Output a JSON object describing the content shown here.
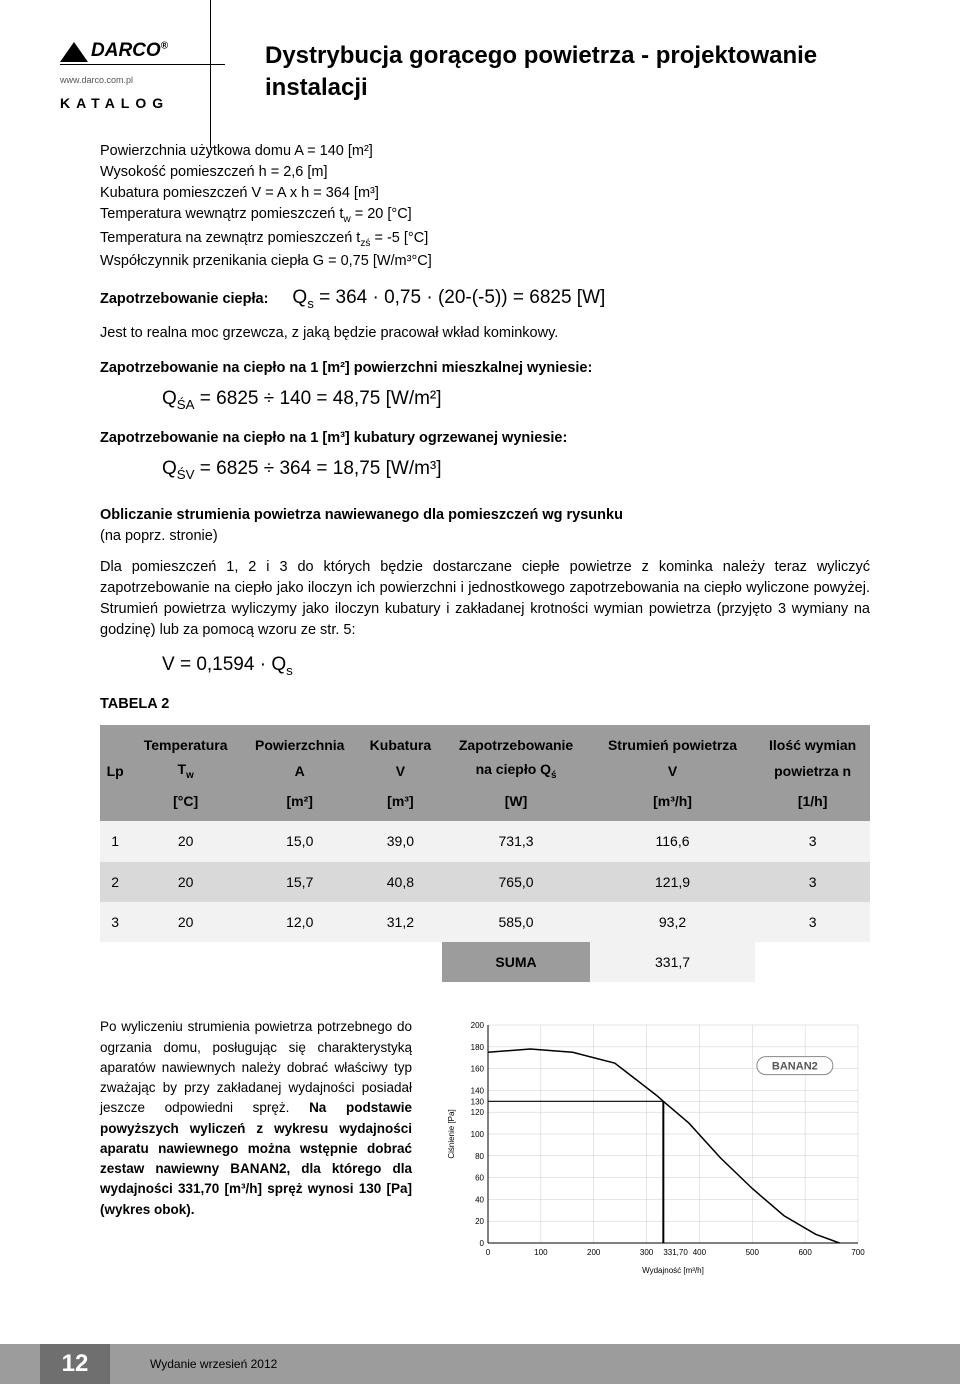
{
  "logo": {
    "brand": "DARCO",
    "reg": "®",
    "url": "www.darco.com.pl",
    "katalog": "KATALOG"
  },
  "title": "Dystrybucja gorącego powietrza - projektowanie instalacji",
  "params": {
    "l1": "Powierzchnia użytkowa domu  A = 140 [m²]",
    "l2": "Wysokość pomieszczeń  h = 2,6 [m]",
    "l3": "Kubatura pomieszczeń  V =  A x h = 364 [m³]",
    "l4_a": "Temperatura wewnątrz pomieszczeń t",
    "l4_sub": "w",
    "l4_b": " = 20 [°C]",
    "l5_a": "Temperatura na zewnątrz pomieszczeń t",
    "l5_sub": "zś",
    "l5_b": " = -5 [°C]",
    "l6": "Współczynnik przenikania ciepła G = 0,75 [W/m³°C]"
  },
  "heat_demand": {
    "label": "Zapotrzebowanie ciepła:",
    "eq_a": "Q",
    "eq_sub": "s",
    "eq_b": " = 364 · 0,75 · (20-(-5)) = 6825 [W]"
  },
  "note1": "Jest to realna moc grzewcza, z jaką będzie pracował wkład kominkowy.",
  "per_area": {
    "label": "Zapotrzebowanie na ciepło na 1 [m²] powierzchni mieszkalnej wyniesie:",
    "eq_a": "Q",
    "eq_sub": "ŚA",
    "eq_b": " = 6825 ÷ 140 = 48,75 [W/m²]"
  },
  "per_vol": {
    "label": "Zapotrzebowanie na ciepło na 1 [m³] kubatury ogrzewanej wyniesie:",
    "eq_a": "Q",
    "eq_sub": "ŚV",
    "eq_b": " = 6825 ÷ 364 = 18,75 [W/m³]"
  },
  "calc_hdr": "Obliczanie strumienia powietrza nawiewanego dla pomieszczeń wg rysunku",
  "calc_note": "(na poprz. stronie)",
  "calc_body": "Dla pomieszczeń 1, 2 i 3 do których będzie dostarczane ciepłe powietrze z kominka należy teraz wyliczyć zapotrzebowanie na ciepło jako iloczyn ich powierzchni i jednostkowego zapotrzebowania na ciepło wyliczone powyżej. Strumień powietrza wyliczymy jako iloczyn kubatury i zakładanej krotności wymian powietrza (przyjęto 3 wymiany na godzinę) lub za pomocą wzoru ze str. 5:",
  "eq_v": {
    "a": "V = 0,1594 · Q",
    "sub": "s"
  },
  "table_title": "TABELA 2",
  "table": {
    "headers1": [
      "",
      "Temperatura",
      "Powierzchnia",
      "Kubatura",
      "Zapotrzebowanie",
      "Strumień powietrza",
      "Ilość wymian"
    ],
    "headers2_lp": "Lp",
    "headers2": [
      "",
      "T",
      "A",
      "V",
      "na ciepło  Q",
      "V",
      "powietrza n"
    ],
    "headers2_sub": {
      "1": "w",
      "4": "ś"
    },
    "units": [
      "",
      "[°C]",
      "[m²]",
      "[m³]",
      "[W]",
      "[m³/h]",
      "[1/h]"
    ],
    "rows": [
      [
        "1",
        "20",
        "15,0",
        "39,0",
        "731,3",
        "116,6",
        "3"
      ],
      [
        "2",
        "20",
        "15,7",
        "40,8",
        "765,0",
        "121,9",
        "3"
      ],
      [
        "3",
        "20",
        "12,0",
        "31,2",
        "585,0",
        "93,2",
        "3"
      ]
    ],
    "suma_label": "SUMA",
    "suma_value": "331,7"
  },
  "bottom": {
    "p1": "Po wyliczeniu strumienia powietrza potrzebnego do ogrzania domu, posługując się charakterystyką aparatów nawiewnych należy dobrać właściwy typ zważając by przy zakładanej wydajności posiadał jeszcze odpowiedni spręż. ",
    "p2": "Na podstawie powyższych wyliczeń z wykresu wydajności aparatu nawiewnego można wstępnie dobrać zestaw nawiewny BANAN2, dla którego dla wydajności 331,70 [m³/h] spręż wynosi 130 [Pa] (wykres obok)."
  },
  "chart": {
    "type": "line",
    "label": "BANAN2",
    "xlabel": "Wydajność [m³/h]",
    "ylabel": "Ciśnienie [Pa]",
    "xlim": [
      0,
      700
    ],
    "ylim": [
      0,
      200
    ],
    "xtick_step": 100,
    "yticks": [
      0,
      20,
      40,
      60,
      80,
      100,
      120,
      130,
      140,
      160,
      180,
      200
    ],
    "xticks": [
      0,
      100,
      200,
      300,
      400,
      500,
      600,
      700
    ],
    "xtick_extra": 331.7,
    "x_extra_label": "331,70",
    "series": [
      {
        "x": 0,
        "y": 175
      },
      {
        "x": 80,
        "y": 178
      },
      {
        "x": 160,
        "y": 175
      },
      {
        "x": 240,
        "y": 165
      },
      {
        "x": 320,
        "y": 135
      },
      {
        "x": 331.7,
        "y": 130
      },
      {
        "x": 380,
        "y": 110
      },
      {
        "x": 440,
        "y": 78
      },
      {
        "x": 500,
        "y": 50
      },
      {
        "x": 560,
        "y": 25
      },
      {
        "x": 620,
        "y": 8
      },
      {
        "x": 665,
        "y": 0
      }
    ],
    "line_color": "#000000",
    "line_width": 1.5,
    "grid_color": "#cccccc",
    "marker_x": 331.7,
    "marker_y": 130,
    "label_box_stroke": "#888",
    "font_size": 8
  },
  "footer": {
    "page": "12",
    "text": "Wydanie wrzesień 2012"
  }
}
